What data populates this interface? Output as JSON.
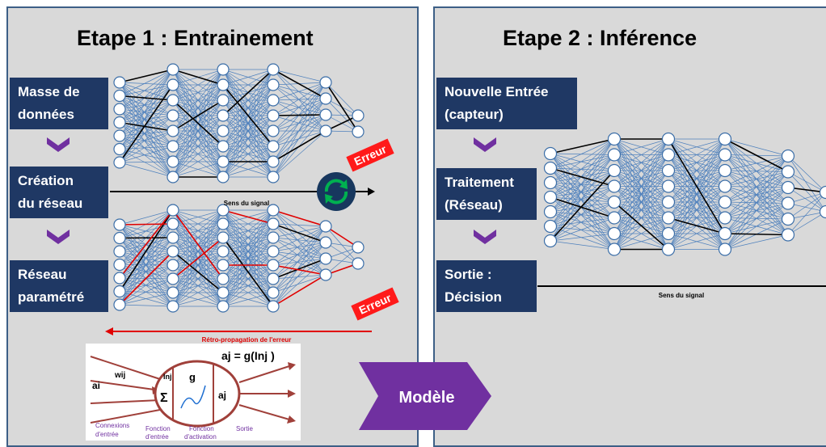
{
  "left_panel": {
    "title": "Etape 1 : Entrainement",
    "steps": [
      {
        "line1": "Masse de",
        "line2": "données"
      },
      {
        "line1": "Création",
        "line2": "du réseau"
      },
      {
        "line1": "Réseau",
        "line2": "paramétré"
      }
    ],
    "signal_label": "Sens du signal",
    "error_label_top": "Erreur",
    "error_label_bottom": "Erreur",
    "backprop_label": "Rétro-propagation de l'erreur",
    "neuron_formula": "aj = g(Inj )",
    "neuron_labels": {
      "input": "ai",
      "weight": "wij",
      "sum_in": "Inj",
      "sum": "Σ",
      "activation": "g",
      "output": "aj",
      "caption_connexions_1": "Connexions",
      "caption_connexions_2": "d'entrée",
      "caption_fonction_entree_1": "Fonction",
      "caption_fonction_entree_2": "d'entrée",
      "caption_fonction_activation_1": "Fonction",
      "caption_fonction_activation_2": "d'activation",
      "caption_sortie": "Sortie"
    }
  },
  "right_panel": {
    "title": "Etape 2 : Inférence",
    "steps": [
      {
        "line1": "Nouvelle Entrée",
        "line2": "(capteur)"
      },
      {
        "line1": "Traitement",
        "line2": "(Réseau)"
      },
      {
        "line1": "Sortie :",
        "line2": "Décision"
      }
    ],
    "signal_label": "Sens du signal"
  },
  "model_label": "Modèle",
  "colors": {
    "panel_bg": "#d9d9d9",
    "panel_border": "#3d5f86",
    "step_box": "#1f3864",
    "chevron": "#7030a0",
    "network_edge": "#4f81bd",
    "highlight_edge": "#000000",
    "error_edge": "#e00000",
    "error_badge": "#ff1a1a",
    "cycle_circle": "#17375e",
    "cycle_arrows": "#00b050",
    "model_arrow": "#7030a0"
  }
}
